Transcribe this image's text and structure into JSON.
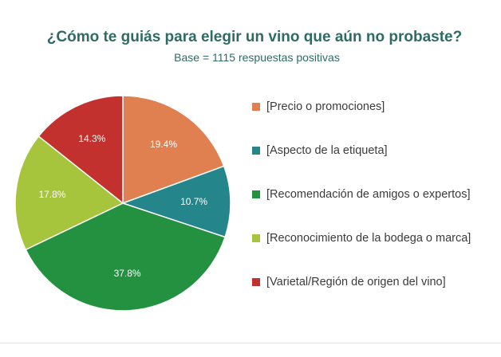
{
  "chart_data": {
    "type": "pie",
    "title": "¿Cómo te guiás para elegir un vino que aún no probaste?",
    "subtitle": "Base = 1115 respuestas positivas",
    "legend_position": "right",
    "slices": [
      {
        "label": "[Precio o promociones]",
        "value": 19.4,
        "display": "19.4%",
        "color": "#e07f50"
      },
      {
        "label": "[Aspecto de la etiqueta]",
        "value": 10.7,
        "display": "10.7%",
        "color": "#24868a"
      },
      {
        "label": "[Recomendación de amigos o expertos]",
        "value": 37.8,
        "display": "37.8%",
        "color": "#23913f"
      },
      {
        "label": "[Reconocimiento de la bodega o marca]",
        "value": 17.8,
        "display": "17.8%",
        "color": "#a6c43c"
      },
      {
        "label": "[Varietal/Región de origen del vino]",
        "value": 14.3,
        "display": "14.3%",
        "color": "#c2312e"
      }
    ]
  }
}
